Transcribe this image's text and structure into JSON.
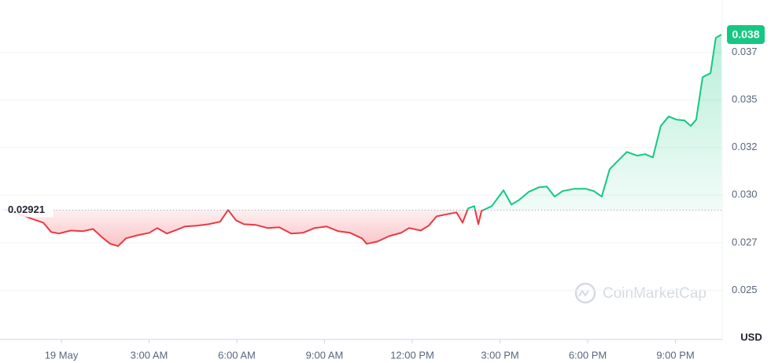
{
  "chart_data": {
    "type": "line",
    "x": [
      -1.96,
      -0.62,
      -0.35,
      -0.08,
      0.32,
      0.73,
      1.08,
      1.4,
      1.67,
      1.94,
      2.21,
      2.61,
      3.01,
      3.28,
      3.61,
      3.95,
      4.22,
      4.63,
      5.03,
      5.43,
      5.7,
      5.97,
      6.24,
      6.65,
      7.05,
      7.45,
      7.86,
      8.26,
      8.66,
      9.07,
      9.47,
      9.87,
      10.28,
      10.44,
      10.81,
      11.22,
      11.62,
      11.89,
      12.29,
      12.56,
      12.83,
      13.24,
      13.51,
      13.72,
      13.91,
      14.12,
      14.26,
      14.37,
      14.72,
      15.12,
      15.39,
      15.66,
      15.98,
      16.33,
      16.6,
      16.87,
      17.14,
      17.54,
      17.94,
      18.21,
      18.48,
      18.75,
      19.02,
      19.34,
      19.69,
      19.96,
      20.23,
      20.5,
      20.77,
      21.04,
      21.31,
      21.52,
      21.71,
      21.93,
      22.2,
      22.38,
      22.57
    ],
    "series": [
      {
        "color_up": "#16c784",
        "color_down": "#ea3943",
        "values": [
          0.02926,
          0.02855,
          0.02806,
          0.02798,
          0.02814,
          0.0281,
          0.02822,
          0.02777,
          0.02744,
          0.02732,
          0.02773,
          0.02789,
          0.02802,
          0.02827,
          0.02798,
          0.02818,
          0.02835,
          0.02839,
          0.02847,
          0.0286,
          0.02922,
          0.02868,
          0.02847,
          0.02843,
          0.02827,
          0.02831,
          0.02798,
          0.02802,
          0.02827,
          0.02835,
          0.0281,
          0.02802,
          0.02773,
          0.02744,
          0.02756,
          0.02785,
          0.02802,
          0.02827,
          0.02814,
          0.02839,
          0.02888,
          0.02901,
          0.02909,
          0.02855,
          0.0293,
          0.02942,
          0.02847,
          0.02917,
          0.02942,
          0.03025,
          0.0295,
          0.02975,
          0.03017,
          0.03041,
          0.03045,
          0.02992,
          0.03021,
          0.03033,
          0.03033,
          0.03021,
          0.02992,
          0.03136,
          0.03178,
          0.03227,
          0.03207,
          0.03215,
          0.03198,
          0.03363,
          0.03413,
          0.03396,
          0.03392,
          0.03363,
          0.03396,
          0.0362,
          0.0364,
          0.03826,
          0.03843
        ]
      }
    ],
    "baseline": 0.02921,
    "price_marker": {
      "value": 0.03843,
      "label": "0.038"
    },
    "xlim": [
      -2,
      22.6
    ],
    "xticks": [
      {
        "value": 0,
        "label": "19 May"
      },
      {
        "value": 3,
        "label": "3:00 AM"
      },
      {
        "value": 6,
        "label": "6:00 AM"
      },
      {
        "value": 9,
        "label": "9:00 AM"
      },
      {
        "value": 12,
        "label": "12:00 PM"
      },
      {
        "value": 15,
        "label": "3:00 PM"
      },
      {
        "value": 18,
        "label": "6:00 PM"
      },
      {
        "value": 21,
        "label": "9:00 PM"
      }
    ],
    "ylim": [
      0.0225,
      0.04
    ],
    "yticks": [
      {
        "value": 0.0375,
        "label": "0.037"
      },
      {
        "value": 0.035,
        "label": "0.035"
      },
      {
        "value": 0.0325,
        "label": "0.032"
      },
      {
        "value": 0.03,
        "label": "0.030"
      },
      {
        "value": 0.0275,
        "label": "0.027"
      },
      {
        "value": 0.025,
        "label": "0.025"
      }
    ],
    "grid": true,
    "currency": "USD",
    "watermark": "CoinMarketCap"
  }
}
